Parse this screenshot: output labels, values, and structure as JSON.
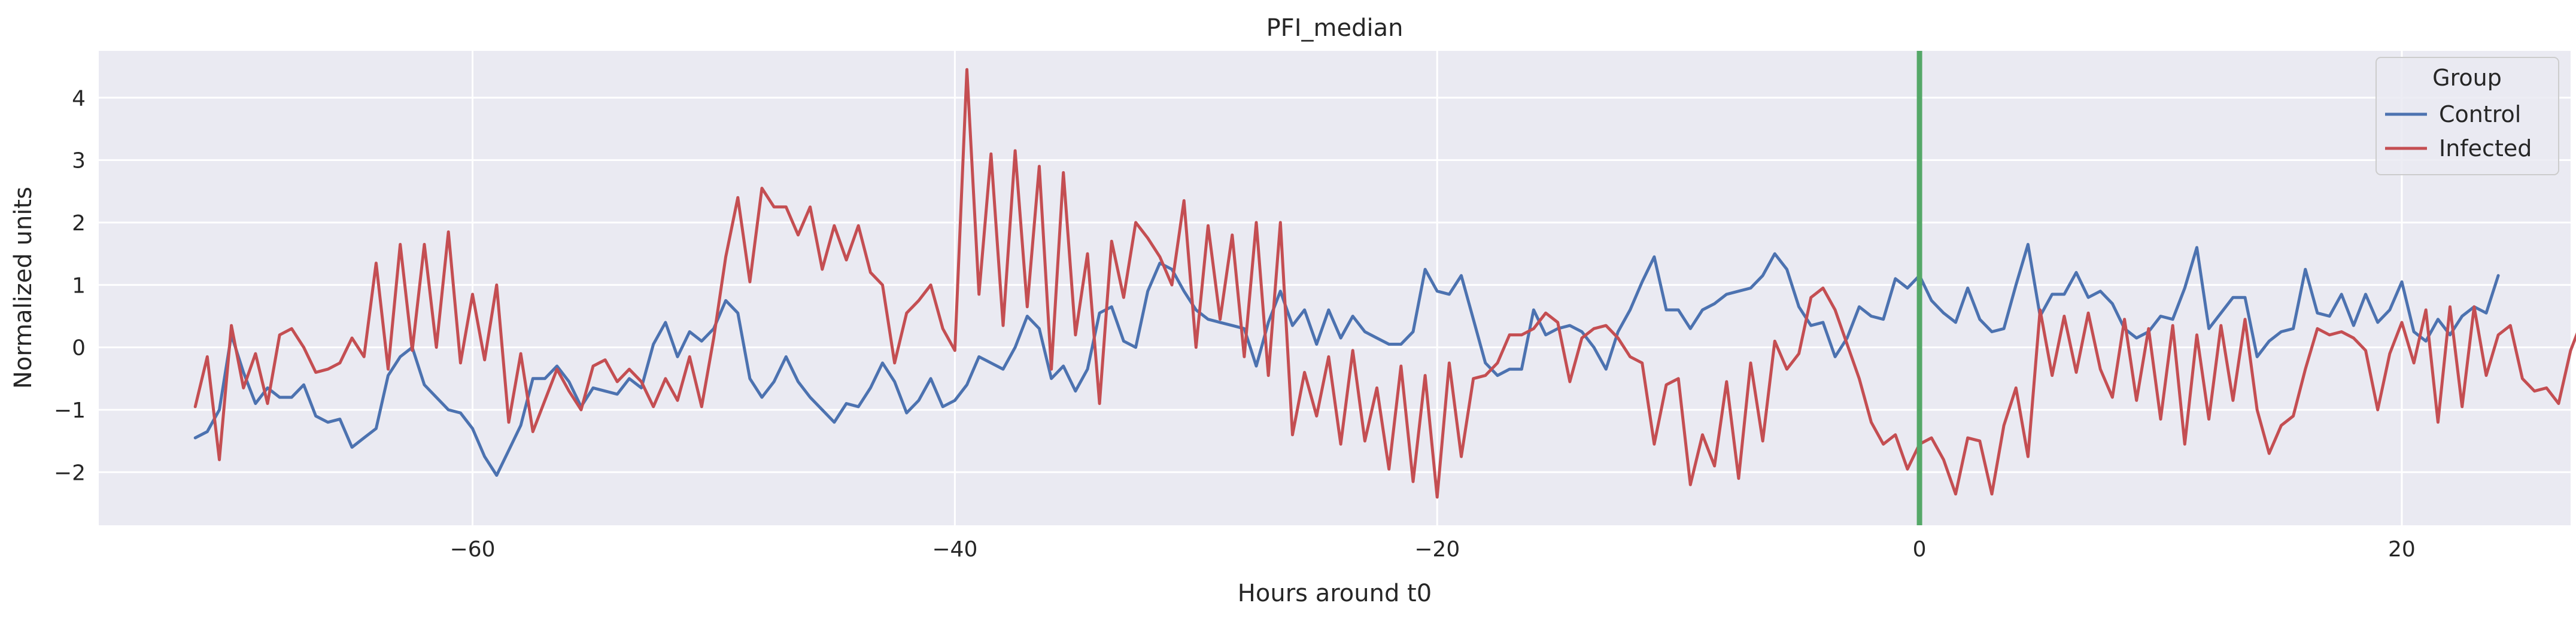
{
  "chart_data": {
    "type": "line",
    "title": "PFI_median",
    "xlabel": "Hours around t0",
    "ylabel": "Normalized units",
    "xlim": [
      -75.5,
      27
    ],
    "ylim": [
      -2.85,
      4.75
    ],
    "x_ticks": [
      -60,
      -40,
      -20,
      0,
      20
    ],
    "y_ticks": [
      -2,
      -1,
      0,
      1,
      2,
      3,
      4
    ],
    "grid": true,
    "background": "#eaeaf2",
    "legend": {
      "title": "Group",
      "placement": "top-right"
    },
    "vline": {
      "x": 0,
      "color": "#55a868"
    },
    "x_start": -71.5,
    "x_step": 0.5,
    "series": [
      {
        "name": "Control",
        "color": "#4c72b0",
        "values": [
          -1.45,
          -1.35,
          -1.0,
          0.2,
          -0.4,
          -0.9,
          -0.65,
          -0.8,
          -0.8,
          -0.6,
          -1.1,
          -1.2,
          -1.15,
          -1.6,
          -1.45,
          -1.3,
          -0.45,
          -0.15,
          0.0,
          -0.6,
          -0.8,
          -1.0,
          -1.05,
          -1.3,
          -1.75,
          -2.05,
          -1.65,
          -1.25,
          -0.5,
          -0.5,
          -0.3,
          -0.55,
          -0.95,
          -0.65,
          -0.7,
          -0.75,
          -0.5,
          -0.65,
          0.05,
          0.4,
          -0.15,
          0.25,
          0.1,
          0.3,
          0.75,
          0.55,
          -0.5,
          -0.8,
          -0.55,
          -0.15,
          -0.55,
          -0.8,
          -1.0,
          -1.2,
          -0.9,
          -0.95,
          -0.65,
          -0.25,
          -0.55,
          -1.05,
          -0.85,
          -0.5,
          -0.95,
          -0.85,
          -0.6,
          -0.15,
          -0.25,
          -0.35,
          0.0,
          0.5,
          0.3,
          -0.5,
          -0.3,
          -0.7,
          -0.35,
          0.55,
          0.65,
          0.1,
          0.0,
          0.9,
          1.35,
          1.25,
          0.9,
          0.6,
          0.45,
          0.4,
          0.35,
          0.3,
          -0.3,
          0.4,
          0.9,
          0.35,
          0.6,
          0.05,
          0.6,
          0.15,
          0.5,
          0.25,
          0.15,
          0.05,
          0.05,
          0.25,
          1.25,
          0.9,
          0.85,
          1.15,
          0.45,
          -0.25,
          -0.45,
          -0.35,
          -0.35,
          0.6,
          0.2,
          0.3,
          0.35,
          0.25,
          0.0,
          -0.35,
          0.25,
          0.6,
          1.05,
          1.45,
          0.6,
          0.6,
          0.3,
          0.6,
          0.7,
          0.85,
          0.9,
          0.95,
          1.15,
          1.5,
          1.25,
          0.65,
          0.35,
          0.4,
          -0.15,
          0.15,
          0.65,
          0.5,
          0.45,
          1.1,
          0.95,
          1.15,
          0.75,
          0.55,
          0.4,
          0.95,
          0.45,
          0.25,
          0.3,
          1.0,
          1.65,
          0.5,
          0.85,
          0.85,
          1.2,
          0.8,
          0.9,
          0.7,
          0.3,
          0.15,
          0.25,
          0.5,
          0.45,
          0.95,
          1.6,
          0.3,
          0.55,
          0.8,
          0.8,
          -0.15,
          0.1,
          0.25,
          0.3,
          1.25,
          0.55,
          0.5,
          0.85,
          0.35,
          0.85,
          0.4,
          0.6,
          1.05,
          0.25,
          0.1,
          0.45,
          0.2,
          0.5,
          0.65,
          0.55,
          1.15
        ]
      },
      {
        "name": "Infected",
        "color": "#c44e52",
        "values": [
          -0.95,
          -0.15,
          -1.8,
          0.35,
          -0.65,
          -0.1,
          -0.9,
          0.2,
          0.3,
          0.0,
          -0.4,
          -0.35,
          -0.25,
          0.15,
          -0.15,
          1.35,
          -0.35,
          1.65,
          -0.05,
          1.65,
          0.0,
          1.85,
          -0.25,
          0.85,
          -0.2,
          1.0,
          -1.2,
          -0.1,
          -1.35,
          -0.85,
          -0.35,
          -0.7,
          -1.0,
          -0.3,
          -0.2,
          -0.55,
          -0.35,
          -0.55,
          -0.95,
          -0.5,
          -0.85,
          -0.15,
          -0.95,
          0.15,
          1.45,
          2.4,
          1.05,
          2.55,
          2.25,
          2.25,
          1.8,
          2.25,
          1.25,
          1.95,
          1.4,
          1.95,
          1.2,
          1.0,
          -0.25,
          0.55,
          0.75,
          1.0,
          0.3,
          -0.05,
          4.45,
          0.85,
          3.1,
          0.35,
          3.15,
          0.65,
          2.9,
          -0.35,
          2.8,
          0.2,
          1.5,
          -0.9,
          1.7,
          0.8,
          2.0,
          1.75,
          1.45,
          1.0,
          2.35,
          0.0,
          1.95,
          0.45,
          1.8,
          -0.15,
          2.0,
          -0.45,
          2.0,
          -1.4,
          -0.4,
          -1.1,
          -0.15,
          -1.55,
          -0.05,
          -1.5,
          -0.65,
          -1.95,
          -0.3,
          -2.15,
          -0.45,
          -2.4,
          -0.25,
          -1.75,
          -0.5,
          -0.45,
          -0.25,
          0.2,
          0.2,
          0.3,
          0.55,
          0.4,
          -0.55,
          0.15,
          0.3,
          0.35,
          0.15,
          -0.15,
          -0.25,
          -1.55,
          -0.6,
          -0.5,
          -2.2,
          -1.4,
          -1.9,
          -0.55,
          -2.1,
          -0.25,
          -1.5,
          0.1,
          -0.35,
          -0.1,
          0.8,
          0.95,
          0.6,
          0.05,
          -0.5,
          -1.2,
          -1.55,
          -1.4,
          -1.95,
          -1.55,
          -1.45,
          -1.8,
          -2.35,
          -1.45,
          -1.5,
          -2.35,
          -1.25,
          -0.65,
          -1.75,
          0.6,
          -0.45,
          0.5,
          -0.4,
          0.55,
          -0.35,
          -0.8,
          0.45,
          -0.85,
          0.3,
          -1.15,
          0.35,
          -1.55,
          0.2,
          -1.15,
          0.35,
          -0.85,
          0.45,
          -1.0,
          -1.7,
          -1.25,
          -1.1,
          -0.35,
          0.3,
          0.2,
          0.25,
          0.15,
          -0.05,
          -1.0,
          -0.1,
          0.4,
          -0.25,
          0.6,
          -1.2,
          0.65,
          -0.95,
          0.65,
          -0.45,
          0.2,
          0.35,
          -0.5,
          -0.7,
          -0.65,
          -0.9,
          -0.05,
          0.45,
          0.05
        ]
      }
    ]
  }
}
